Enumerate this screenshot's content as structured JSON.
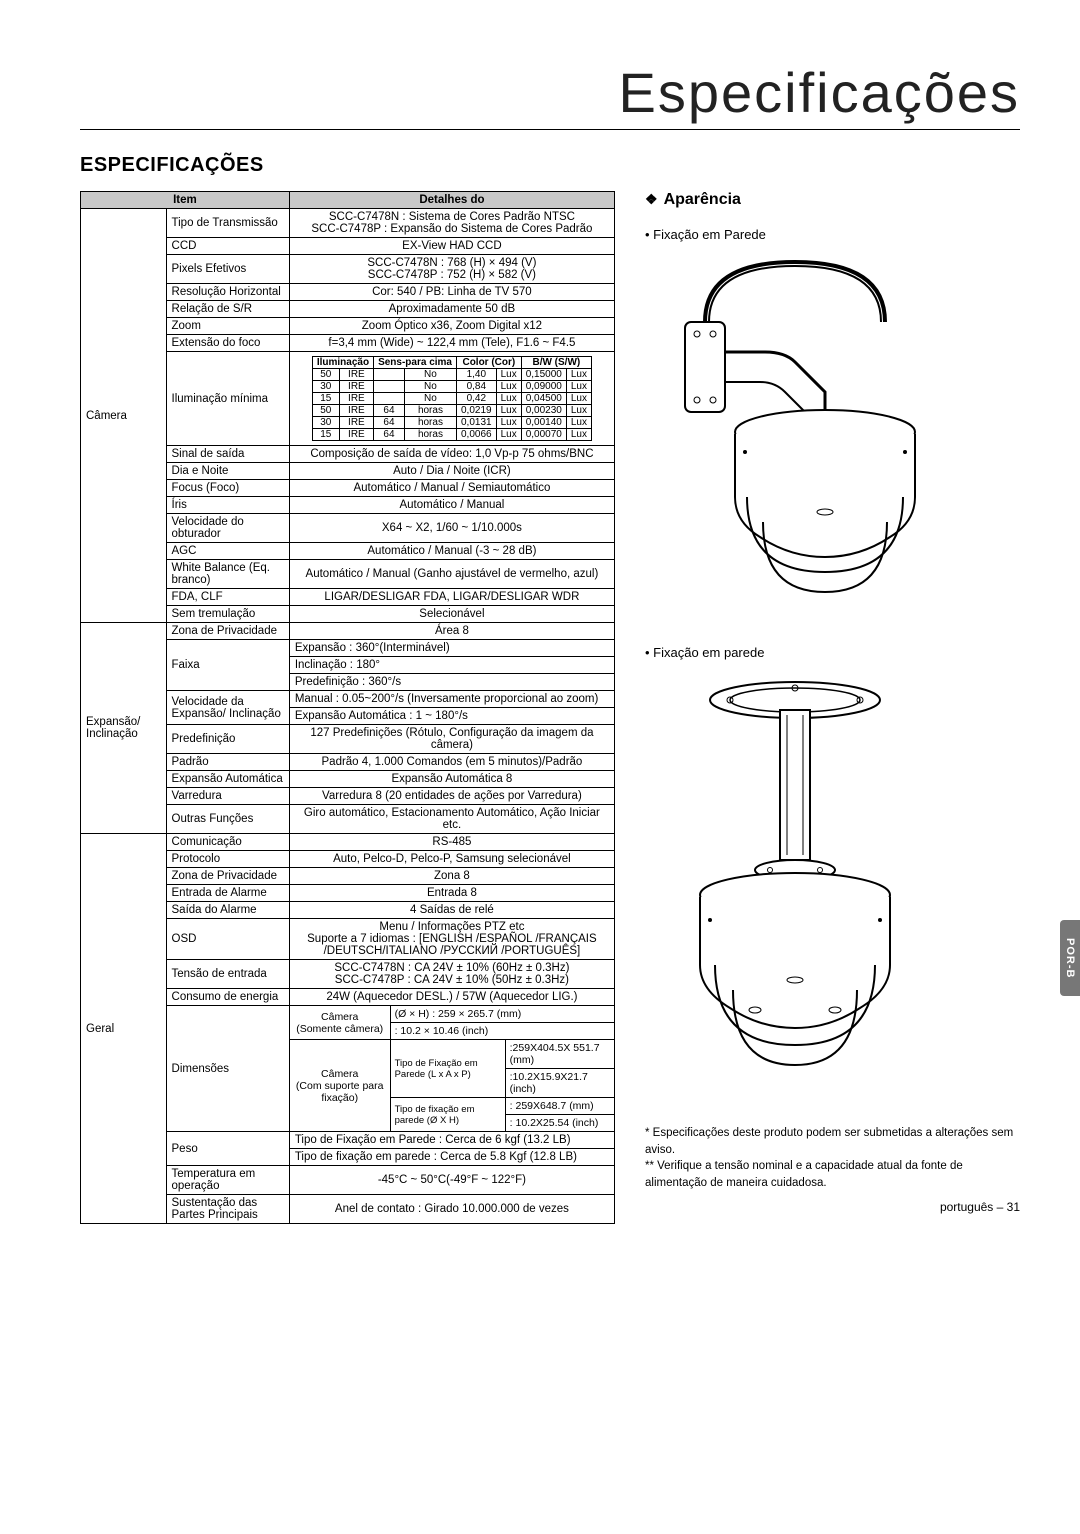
{
  "page": {
    "top_title": "Especificações",
    "section_title": "ESPECIFICAÇÕES",
    "side_tab": "POR-B",
    "page_footer": "português – 31"
  },
  "table": {
    "head_item": "Item",
    "head_detail": "Detalhes do",
    "groups": {
      "camera": "Câmera",
      "pan_tilt": "Expansão/ Inclinação",
      "geral": "Geral"
    },
    "rows": {
      "transmissao_label": "Tipo de Transmissão",
      "transmissao_val1": "SCC-C7478N : Sistema de Cores Padrão NTSC",
      "transmissao_val2": "SCC-C7478P : Expansão do Sistema de Cores Padrão",
      "ccd_label": "CCD",
      "ccd_val": "EX-View HAD CCD",
      "pixels_label": "Pixels Efetivos",
      "pixels_val1": "SCC-C7478N : 768 (H) × 494 (V)",
      "pixels_val2": "SCC-C7478P : 752 (H) × 582 (V)",
      "resh_label": "Resolução Horizontal",
      "resh_val": "Cor: 540 / PB: Linha de TV 570",
      "sn_label": "Relação de S/R",
      "sn_val": "Aproximadamente 50 dB",
      "zoom_label": "Zoom",
      "zoom_val": "Zoom Óptico x36, Zoom Digital x12",
      "foco_label": "Extensão do foco",
      "foco_val": "f=3,4 mm (Wide) ~ 122,4 mm (Tele), F1.6 ~ F4.5",
      "ilum_label": "Iluminação mínima",
      "sinal_label": "Sinal de saída",
      "sinal_val": "Composição de saída de vídeo: 1,0 Vp-p 75 ohms/BNC",
      "dian_label": "Dia e Noite",
      "dian_val": "Auto / Dia / Noite (ICR)",
      "focus_label": "Focus (Foco)",
      "focus_val": "Automático / Manual / Semiautomático",
      "iris_label": "Íris",
      "iris_val": "Automático / Manual",
      "shutter_label": "Velocidade do obturador",
      "shutter_val": "X64 ~ X2, 1/60 ~ 1/10.000s",
      "agc_label": "AGC",
      "agc_val": "Automático / Manual (-3 ~ 28 dB)",
      "wb_label": "White Balance (Eq. branco)",
      "wb_val": "Automático / Manual (Ganho ajustável de vermelho, azul)",
      "fda_label": "FDA, CLF",
      "fda_val": "LIGAR/DESLIGAR FDA, LIGAR/DESLIGAR WDR",
      "trem_label": "Sem tremulação",
      "trem_val": "Selecionável",
      "priv_label": "Zona de Privacidade",
      "priv_val": "Área 8",
      "faixa_label": "Faixa",
      "faixa_r1": "Expansão :  360°(Interminável)",
      "faixa_r2": "Inclinação :  180°",
      "faixa_r3": "Predefinição :  360°/s",
      "vel_label": "Velocidade da Expansão/ Inclinação",
      "vel_r1": "Manual : 0.05~200°/s (Inversamente proporcional ao zoom)",
      "vel_r2": "Expansão Automática :  1 ~ 180°/s",
      "predef_label": "Predefinição",
      "predef_val": "127 Predefinições (Rótulo, Configuração da imagem da câmera)",
      "padrao_label": "Padrão",
      "padrao_val": "Padrão 4, 1.000 Comandos (em 5 minutos)/Padrão",
      "expaut_label": "Expansão Automática",
      "expaut_val": "Expansão Automática 8",
      "varr_label": "Varredura",
      "varr_val": "Varredura 8 (20 entidades de ações por Varredura)",
      "outras_label": "Outras Funções",
      "outras_val": "Giro automático, Estacionamento Automático, Ação Iniciar etc.",
      "com_label": "Comunicação",
      "com_val": "RS-485",
      "proto_label": "Protocolo",
      "proto_val": "Auto, Pelco-D, Pelco-P, Samsung selecionável",
      "zpriv2_label": "Zona de Privacidade",
      "zpriv2_val": "Zona 8",
      "almin_label": "Entrada de Alarme",
      "almin_val": "Entrada 8",
      "almout_label": "Saída do Alarme",
      "almout_val": "4 Saídas de relé",
      "osd_label": "OSD",
      "osd_r1": "Menu / Informações PTZ etc",
      "osd_r2": "Suporte a 7 idiomas : [ENGLISH /ESPAÑOL /FRANÇAIS",
      "osd_r3": "/DEUTSCH/ITALIANO /РУССКИЙ /PORTUGUÊS]",
      "tensao_label": "Tensão de entrada",
      "tensao_r1": "SCC-C7478N : CA 24V ± 10% (60Hz ± 0.3Hz)",
      "tensao_r2": "SCC-C7478P : CA 24V ± 10% (50Hz ± 0.3Hz)",
      "cons_label": "Consumo de energia",
      "cons_val": "24W (Aquecedor DESL.) / 57W (Aquecedor LIG.)",
      "dim_label": "Dimensões",
      "dim_cam1": "Câmera",
      "dim_cam1b": "(Somente câmera)",
      "dim_cam1_v1": "(Ø × H) : 259 × 265.7 (mm)",
      "dim_cam1_v2": ": 10.2 × 10.46 (inch)",
      "dim_cam2": "Câmera",
      "dim_cam2b": "(Com suporte para fixação)",
      "dim_cam2_h1": "Tipo de Fixação em Parede (L x A x P)",
      "dim_cam2_v1": ":259X404.5X 551.7 (mm)",
      "dim_cam2_v2": ":10.2X15.9X21.7 (inch)",
      "dim_cam2_h2": "Tipo de fixação em parede (Ø X H)",
      "dim_cam2_v3": ": 259X648.7 (mm)",
      "dim_cam2_v4": ": 10.2X25.54 (inch)",
      "peso_label": "Peso",
      "peso_r1": "Tipo de Fixação em Parede : Cerca de 6 kgf  (13.2 LB)",
      "peso_r2": "Tipo de fixação em parede : Cerca de 5.8 Kgf (12.8 LB)",
      "temp_label": "Temperatura em operação",
      "temp_val": "-45°C ~ 50°C(-49°F ~ 122°F)",
      "sust_label": "Sustentação das Partes Principais",
      "sust_val": "Anel de contato : Girado 10.000.000 de vezes"
    },
    "ilum": {
      "h1": "Iluminação",
      "h2": "Sens-para cima",
      "h3": "Color (Cor)",
      "h4": "B/W (S/W)",
      "rows": [
        [
          "50",
          "IRE",
          "",
          "No",
          "1,40",
          "Lux",
          "0,15000",
          "Lux"
        ],
        [
          "30",
          "IRE",
          "",
          "No",
          "0,84",
          "Lux",
          "0,09000",
          "Lux"
        ],
        [
          "15",
          "IRE",
          "",
          "No",
          "0,42",
          "Lux",
          "0,04500",
          "Lux"
        ],
        [
          "50",
          "IRE",
          "64",
          "horas",
          "0,0219",
          "Lux",
          "0,00230",
          "Lux"
        ],
        [
          "30",
          "IRE",
          "64",
          "horas",
          "0,0131",
          "Lux",
          "0,00140",
          "Lux"
        ],
        [
          "15",
          "IRE",
          "64",
          "horas",
          "0,0066",
          "Lux",
          "0,00070",
          "Lux"
        ]
      ]
    }
  },
  "right": {
    "aparencia": "Aparência",
    "bullet1": "• Fixação em Parede",
    "bullet2": "• Fixação em parede",
    "note1": "* Especificações deste produto podem ser submetidas a alterações sem aviso.",
    "note2": "** Verifique a tensão nominal e a capacidade atual da fonte de alimentação de maneira cuidadosa."
  }
}
